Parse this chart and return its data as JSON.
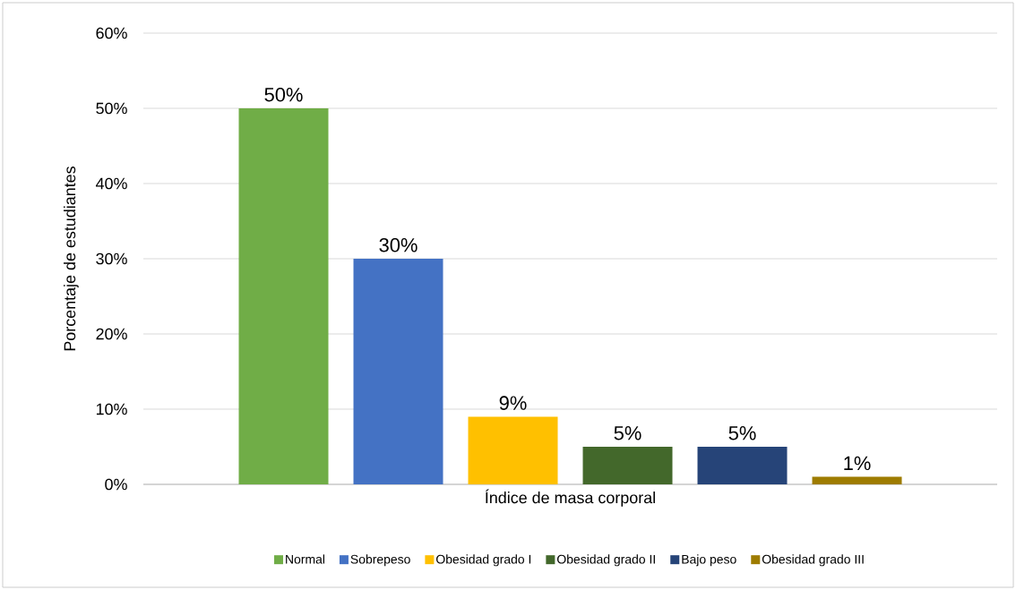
{
  "chart_data": {
    "type": "bar",
    "ylabel": "Porcentaje de estudiantes",
    "categories": [
      "Índice de masa corporal"
    ],
    "series": [
      {
        "name": "Normal",
        "color": "#70ad47",
        "values": [
          50
        ],
        "value_labels": [
          "50%"
        ]
      },
      {
        "name": "Sobrepeso",
        "color": "#4472c4",
        "values": [
          30
        ],
        "value_labels": [
          "30%"
        ]
      },
      {
        "name": "Obesidad grado I",
        "color": "#ffc000",
        "values": [
          9
        ],
        "value_labels": [
          "9%"
        ]
      },
      {
        "name": "Obesidad grado II",
        "color": "#43682b",
        "values": [
          5
        ],
        "value_labels": [
          "5%"
        ]
      },
      {
        "name": "Bajo peso",
        "color": "#264478",
        "values": [
          5
        ],
        "value_labels": [
          "5%"
        ]
      },
      {
        "name": "Obesidad grado III",
        "color": "#9e7c00",
        "values": [
          1
        ],
        "value_labels": [
          "1%"
        ]
      }
    ],
    "ylim": [
      0,
      60
    ],
    "yticks": [
      {
        "value": 0,
        "label": "0%"
      },
      {
        "value": 10,
        "label": "10%"
      },
      {
        "value": 20,
        "label": "20%"
      },
      {
        "value": 30,
        "label": "30%"
      },
      {
        "value": 40,
        "label": "40%"
      },
      {
        "value": 50,
        "label": "50%"
      },
      {
        "value": 60,
        "label": "60%"
      }
    ],
    "grid": "y",
    "legend": "bottom"
  }
}
